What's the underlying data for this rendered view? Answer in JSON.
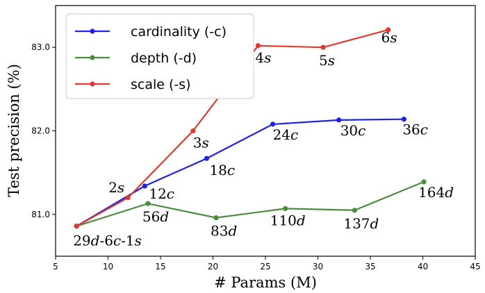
{
  "chart_data": {
    "type": "line",
    "xlabel": "# Params (M)",
    "ylabel": "Test precision (%)",
    "xlim": [
      5,
      45
    ],
    "ylim": [
      80.5,
      83.5
    ],
    "xticks": [
      5,
      10,
      15,
      20,
      25,
      30,
      35,
      40,
      45
    ],
    "yticks": [
      81.0,
      82.0,
      83.0
    ],
    "xtick_labels": [
      "5",
      "10",
      "15",
      "20",
      "25",
      "30",
      "35",
      "40",
      "45"
    ],
    "ytick_labels": [
      "81.0",
      "82.0",
      "83.0"
    ],
    "grid": false,
    "legend_position": "top-left",
    "series": [
      {
        "name": "cardinality (-c)",
        "color": "#2020e8",
        "points": [
          {
            "x": 7.0,
            "y": 80.86,
            "label": ""
          },
          {
            "x": 13.5,
            "y": 81.34,
            "label": "12c"
          },
          {
            "x": 19.4,
            "y": 81.67,
            "label": "18c"
          },
          {
            "x": 25.7,
            "y": 82.08,
            "label": "24c"
          },
          {
            "x": 32.0,
            "y": 82.13,
            "label": "30c"
          },
          {
            "x": 38.2,
            "y": 82.14,
            "label": "36c"
          }
        ]
      },
      {
        "name": "depth (-d)",
        "color": "#4e8a3e",
        "points": [
          {
            "x": 7.0,
            "y": 80.86,
            "label": "29d-6c-1s"
          },
          {
            "x": 13.8,
            "y": 81.13,
            "label": "56d"
          },
          {
            "x": 20.3,
            "y": 80.96,
            "label": "83d"
          },
          {
            "x": 26.9,
            "y": 81.07,
            "label": "110d"
          },
          {
            "x": 33.5,
            "y": 81.05,
            "label": "137d"
          },
          {
            "x": 40.1,
            "y": 81.39,
            "label": "164d"
          }
        ]
      },
      {
        "name": "scale (-s)",
        "color": "#e03a30",
        "points": [
          {
            "x": 7.0,
            "y": 80.86,
            "label": ""
          },
          {
            "x": 11.9,
            "y": 81.2,
            "label": "2s"
          },
          {
            "x": 18.1,
            "y": 82.0,
            "label": "3s"
          },
          {
            "x": 24.3,
            "y": 83.02,
            "label": "4s"
          },
          {
            "x": 30.5,
            "y": 83.0,
            "label": "5s"
          },
          {
            "x": 36.7,
            "y": 83.21,
            "label": "6s"
          }
        ]
      }
    ]
  }
}
